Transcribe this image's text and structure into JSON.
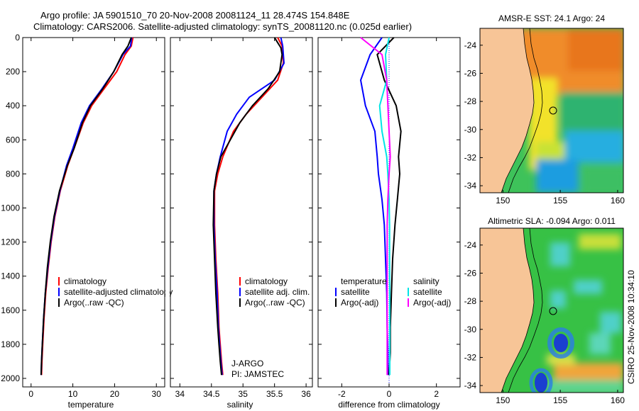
{
  "header": {
    "line1": "Argo profile: JA 5901510_70 20-Nov-2008 20081124_11 28.474S 154.848E",
    "line2": "Climatology: CARS2006. Satellite-adjusted climatology: synTS_20081120.nc (0.025d earlier)"
  },
  "colors": {
    "climatology": "#ff0000",
    "satellite": "#0000ff",
    "argo": "#000000",
    "argo_salinity_diff": "#ff00ff",
    "satellite_salinity_diff": "#00e5e5",
    "land": "#f7c597"
  },
  "chart_data": [
    {
      "type": "line",
      "id": "temperature",
      "xlabel": "temperature",
      "ylabel": "",
      "xlim": [
        -2,
        32
      ],
      "ylim": [
        2050,
        0
      ],
      "xticks": [
        0,
        10,
        20,
        30
      ],
      "yticks": [
        0,
        200,
        400,
        600,
        800,
        1000,
        1200,
        1400,
        1600,
        1800,
        2000
      ],
      "legend": [
        "climatology",
        "satellite-adjusted climatology",
        "Argo(..raw -QC)"
      ],
      "series": [
        {
          "name": "climatology",
          "color": "#ff0000",
          "x": [
            24.4,
            24.0,
            22.5,
            20.5,
            17.5,
            14.5,
            12.5,
            10.3,
            8.8,
            7.0,
            5.7,
            4.8,
            4.1,
            3.5,
            3.1,
            2.8,
            2.6,
            2.5
          ],
          "y": [
            0,
            50,
            100,
            200,
            300,
            400,
            500,
            650,
            750,
            900,
            1050,
            1200,
            1350,
            1500,
            1650,
            1800,
            1900,
            1980
          ]
        },
        {
          "name": "satellite",
          "color": "#0000ff",
          "x": [
            24.1,
            23.8,
            22.0,
            19.8,
            17.0,
            14.0,
            12.0,
            10.0,
            8.5,
            6.9,
            5.6,
            4.7,
            4.0,
            3.4,
            3.0,
            2.7,
            2.5,
            2.4
          ],
          "y": [
            0,
            50,
            100,
            200,
            300,
            400,
            500,
            650,
            750,
            900,
            1050,
            1200,
            1350,
            1500,
            1650,
            1800,
            1900,
            1980
          ]
        },
        {
          "name": "argo",
          "color": "#000000",
          "x": [
            24.0,
            23.2,
            21.8,
            19.8,
            17.2,
            14.2,
            12.3,
            10.3,
            8.7,
            6.8,
            5.5,
            4.6,
            3.9,
            3.4,
            3.0,
            2.7,
            2.5,
            2.4
          ],
          "y": [
            0,
            50,
            100,
            200,
            300,
            400,
            500,
            650,
            750,
            900,
            1050,
            1200,
            1350,
            1500,
            1650,
            1800,
            1900,
            1980
          ]
        }
      ]
    },
    {
      "type": "line",
      "id": "salinity",
      "xlabel": "salinity",
      "ylabel": "",
      "xlim": [
        33.85,
        36.1
      ],
      "ylim": [
        2050,
        0
      ],
      "xticks": [
        34,
        34.5,
        35,
        35.5,
        36
      ],
      "legend": [
        "climatology",
        "satellite adj. clim.",
        "Argo(..raw -QC)"
      ],
      "annotations": [
        "J-ARGO",
        "PI: JAMSTEC"
      ],
      "series": [
        {
          "name": "climatology",
          "color": "#ff0000",
          "x": [
            35.55,
            35.62,
            35.64,
            35.55,
            35.3,
            35.05,
            34.85,
            34.68,
            34.6,
            34.55,
            34.55,
            34.57,
            34.6,
            34.62,
            34.64,
            34.66,
            34.68
          ],
          "y": [
            0,
            50,
            150,
            250,
            350,
            450,
            550,
            700,
            800,
            900,
            1100,
            1300,
            1500,
            1700,
            1800,
            1900,
            1980
          ]
        },
        {
          "name": "satellite",
          "color": "#0000ff",
          "x": [
            35.6,
            35.63,
            35.65,
            35.5,
            35.1,
            34.9,
            34.75,
            34.64,
            34.58,
            34.54,
            34.54,
            34.56,
            34.59,
            34.61,
            34.63,
            34.65,
            34.67
          ],
          "y": [
            0,
            50,
            150,
            250,
            350,
            450,
            550,
            700,
            800,
            900,
            1100,
            1300,
            1500,
            1700,
            1800,
            1900,
            1980
          ]
        },
        {
          "name": "argo",
          "color": "#000000",
          "x": [
            35.5,
            35.55,
            35.6,
            35.62,
            35.58,
            35.4,
            35.15,
            34.95,
            34.8,
            34.65,
            34.58,
            34.54,
            34.53,
            34.55,
            34.57,
            34.6,
            34.62,
            34.64,
            34.66
          ],
          "y": [
            0,
            30,
            60,
            100,
            200,
            300,
            400,
            500,
            600,
            700,
            800,
            900,
            1100,
            1300,
            1500,
            1700,
            1800,
            1900,
            1980
          ]
        }
      ]
    },
    {
      "type": "line",
      "id": "difference",
      "xlabel": "difference from climatology",
      "ylabel": "",
      "xlim": [
        -3,
        3
      ],
      "ylim": [
        2050,
        0
      ],
      "xticks": [
        -2,
        0,
        2
      ],
      "legend": [
        "temperature",
        "satellite",
        "Argo(-adj)",
        "salinity",
        "satellite",
        "Argo(-adj)"
      ],
      "series": [
        {
          "name": "temperature satellite",
          "color": "#0000ff",
          "x": [
            -0.3,
            -0.8,
            -1.2,
            -1.0,
            -0.6,
            -0.5,
            -0.45,
            -0.3,
            -0.2,
            -0.15,
            -0.1,
            -0.08,
            -0.05,
            -0.05
          ],
          "y": [
            0,
            100,
            250,
            400,
            550,
            700,
            800,
            950,
            1100,
            1300,
            1500,
            1700,
            1850,
            1980
          ]
        },
        {
          "name": "temperature argo",
          "color": "#000000",
          "x": [
            0.2,
            -0.5,
            -0.2,
            0.3,
            0.5,
            0.4,
            0.45,
            0.35,
            0.25,
            0.15,
            0.1,
            0.05,
            0.05,
            0.0
          ],
          "y": [
            0,
            100,
            250,
            400,
            550,
            700,
            800,
            950,
            1100,
            1300,
            1500,
            1700,
            1850,
            1980
          ]
        },
        {
          "name": "salinity satellite",
          "color": "#00e5e5",
          "x": [
            0.0,
            -0.15,
            -0.1,
            -0.4,
            -0.3,
            -0.1,
            -0.05,
            0.0,
            0.02,
            0.02,
            0.03,
            0.03,
            0.03,
            0.03
          ],
          "y": [
            0,
            100,
            250,
            400,
            550,
            700,
            800,
            950,
            1100,
            1300,
            1500,
            1700,
            1850,
            1980
          ]
        },
        {
          "name": "salinity argo",
          "color": "#ff00ff",
          "x": [
            -1.2,
            -0.3,
            -0.1,
            -0.05,
            0.0,
            0.05,
            0.0,
            -0.05,
            -0.08,
            -0.08,
            -0.08,
            -0.08,
            -0.08,
            -0.08
          ],
          "y": [
            0,
            100,
            250,
            400,
            550,
            700,
            800,
            950,
            1100,
            1300,
            1500,
            1700,
            1850,
            1980
          ]
        }
      ]
    },
    {
      "type": "heatmap",
      "id": "sst",
      "title": "AMSR-E SST: 24.1 Argo: 24",
      "xticks": [
        150,
        155,
        160
      ],
      "yticks": [
        -24,
        -26,
        -28,
        -30,
        -32,
        -34
      ],
      "xlim": [
        148,
        160.5
      ],
      "ylim": [
        -34.5,
        -22.8
      ],
      "argo_position": [
        154.848,
        -28.474
      ]
    },
    {
      "type": "heatmap",
      "id": "sla",
      "title": "Altimetric SLA: -0.094 Argo: 0.011",
      "xticks": [
        150,
        155,
        160
      ],
      "yticks": [
        -24,
        -26,
        -28,
        -30,
        -32,
        -34
      ],
      "xlim": [
        148,
        160.5
      ],
      "ylim": [
        -34.5,
        -22.8
      ],
      "argo_position": [
        154.848,
        -28.474
      ]
    }
  ],
  "footer": {
    "stamp": "CSIRO 25-Nov-2008 10:34:10"
  }
}
